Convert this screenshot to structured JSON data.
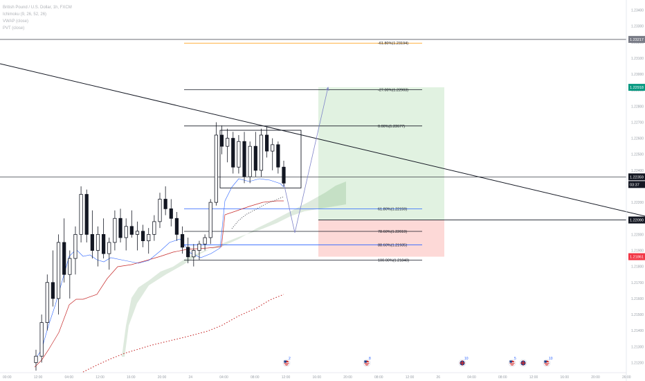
{
  "header": {
    "symbol_line": "British Pound / U.S. Dollar, 1h, FXCM",
    "lines": [
      "Ichimoku (9, 26, 52, 26)",
      "VWAP (close)",
      "PVT (close)"
    ]
  },
  "price_axis": {
    "ticks": [
      "1.23400",
      "1.23300",
      "1.23200",
      "1.23100",
      "1.23000",
      "1.22900",
      "1.22800",
      "1.22700",
      "1.22600",
      "1.22500",
      "1.22400",
      "1.22300",
      "1.22200",
      "1.22100",
      "1.22000",
      "1.21900",
      "1.21800",
      "1.21700",
      "1.21600",
      "1.21500",
      "1.21400",
      "1.21300",
      "1.21200"
    ],
    "flags": {
      "top": {
        "text": "1.23217",
        "color": "#787b86"
      },
      "target": {
        "text": "1.22918",
        "color": "#089981"
      },
      "current": {
        "text": "1.22359",
        "color": "#131722"
      },
      "countdown": {
        "text": "03:37",
        "color": "#131722"
      },
      "entry": {
        "text": "1.22090",
        "color": "#131722"
      },
      "stop": {
        "text": "1.21861",
        "color": "#f23645"
      }
    }
  },
  "time_axis": {
    "ticks": [
      "00:00",
      "12:00",
      "04:00",
      "12:00",
      "16:00",
      "20:00",
      "24",
      "04:00",
      "08:00",
      "12:00",
      "16:00",
      "20:00",
      "08:00",
      "12:00",
      "26",
      "04:00",
      "08:00",
      "12:00",
      "16:00",
      "20:00",
      "26:00"
    ]
  },
  "fib_levels": [
    {
      "text": "-61.80%(1.23194)",
      "color": "#ff9800"
    },
    {
      "text": "-27.00%(1.22903)",
      "color": "#131722"
    },
    {
      "text": "0.00%(1.22677)",
      "color": "#131722"
    },
    {
      "text": "61.80%(1.22159)",
      "color": "#2962ff"
    },
    {
      "text": "78.60%(1.22019)",
      "color": "#131722"
    },
    {
      "text": "88.60%(1.21935)",
      "color": "#2962ff"
    },
    {
      "text": "100.00%(1.21840)",
      "color": "#131722"
    }
  ],
  "events": [
    {
      "flag": "us-flag-icon",
      "count": "2"
    },
    {
      "flag": "us-flag-icon",
      "count": "8"
    },
    {
      "flag": "gb-flag-icon",
      "count": "10"
    },
    {
      "flag": "us-flag-icon",
      "count": "5"
    },
    {
      "flag": "gb-flag-icon",
      "count": ""
    },
    {
      "flag": "us-flag-icon",
      "count": "10"
    }
  ],
  "chart_data": {
    "type": "candlestick",
    "symbol": "GBPUSD",
    "timeframe": "1h",
    "y_range": [
      1.2115,
      1.2345
    ],
    "candles": [
      [
        1.212,
        1.2128,
        1.2115,
        1.2124
      ],
      [
        1.2124,
        1.215,
        1.212,
        1.2145
      ],
      [
        1.2145,
        1.2175,
        1.214,
        1.217
      ],
      [
        1.217,
        1.219,
        1.2155,
        1.216
      ],
      [
        1.216,
        1.22,
        1.215,
        1.2195
      ],
      [
        1.2195,
        1.221,
        1.217,
        1.2175
      ],
      [
        1.2175,
        1.219,
        1.216,
        1.2185
      ],
      [
        1.2185,
        1.2205,
        1.2175,
        1.22
      ],
      [
        1.22,
        1.223,
        1.2195,
        1.2225
      ],
      [
        1.2225,
        1.2228,
        1.2195,
        1.22
      ],
      [
        1.22,
        1.2215,
        1.2185,
        1.219
      ],
      [
        1.219,
        1.2205,
        1.218,
        1.22
      ],
      [
        1.22,
        1.221,
        1.2185,
        1.2188
      ],
      [
        1.2188,
        1.2198,
        1.2178,
        1.2195
      ],
      [
        1.2195,
        1.2215,
        1.219,
        1.221
      ],
      [
        1.221,
        1.2216,
        1.2195,
        1.2198
      ],
      [
        1.2198,
        1.221,
        1.219,
        1.2205
      ],
      [
        1.2205,
        1.2215,
        1.2198,
        1.22
      ],
      [
        1.22,
        1.2208,
        1.219,
        1.2202
      ],
      [
        1.2202,
        1.2206,
        1.2192,
        1.2196
      ],
      [
        1.2196,
        1.2204,
        1.2188,
        1.22
      ],
      [
        1.22,
        1.2212,
        1.2196,
        1.2208
      ],
      [
        1.2208,
        1.2226,
        1.2204,
        1.2222
      ],
      [
        1.2222,
        1.223,
        1.2212,
        1.2216
      ],
      [
        1.2216,
        1.2222,
        1.2205,
        1.221
      ],
      [
        1.221,
        1.2214,
        1.2196,
        1.22
      ],
      [
        1.22,
        1.2205,
        1.2188,
        1.2192
      ],
      [
        1.2192,
        1.2198,
        1.2182,
        1.2186
      ],
      [
        1.2186,
        1.2194,
        1.218,
        1.219
      ],
      [
        1.219,
        1.2196,
        1.2184,
        1.2194
      ],
      [
        1.2194,
        1.22,
        1.219,
        1.2198
      ],
      [
        1.2198,
        1.2222,
        1.2194,
        1.222
      ],
      [
        1.222,
        1.227,
        1.2218,
        1.2262
      ],
      [
        1.2262,
        1.2268,
        1.225,
        1.2255
      ],
      [
        1.2255,
        1.2266,
        1.2245,
        1.226
      ],
      [
        1.226,
        1.2264,
        1.2238,
        1.2242
      ],
      [
        1.2242,
        1.2262,
        1.2238,
        1.2258
      ],
      [
        1.2258,
        1.2264,
        1.2232,
        1.2236
      ],
      [
        1.2236,
        1.2258,
        1.2232,
        1.2255
      ],
      [
        1.2255,
        1.2264,
        1.2236,
        1.224
      ],
      [
        1.224,
        1.2266,
        1.2236,
        1.2262
      ],
      [
        1.2262,
        1.2267,
        1.2248,
        1.2252
      ],
      [
        1.2252,
        1.226,
        1.224,
        1.2256
      ],
      [
        1.2256,
        1.2258,
        1.2238,
        1.2242
      ],
      [
        1.2242,
        1.2246,
        1.223,
        1.2232
      ]
    ],
    "fibonacci_levels": [
      {
        "ratio": -0.618,
        "price": 1.23194
      },
      {
        "ratio": -0.27,
        "price": 1.22903
      },
      {
        "ratio": 0.0,
        "price": 1.22677
      },
      {
        "ratio": 0.618,
        "price": 1.22159
      },
      {
        "ratio": 0.786,
        "price": 1.22019
      },
      {
        "ratio": 0.886,
        "price": 1.21935
      },
      {
        "ratio": 1.0,
        "price": 1.2184
      }
    ],
    "long_position": {
      "entry": 1.2209,
      "target": 1.22918,
      "stop": 1.21861
    },
    "current_price": 1.22359,
    "grid": false
  }
}
